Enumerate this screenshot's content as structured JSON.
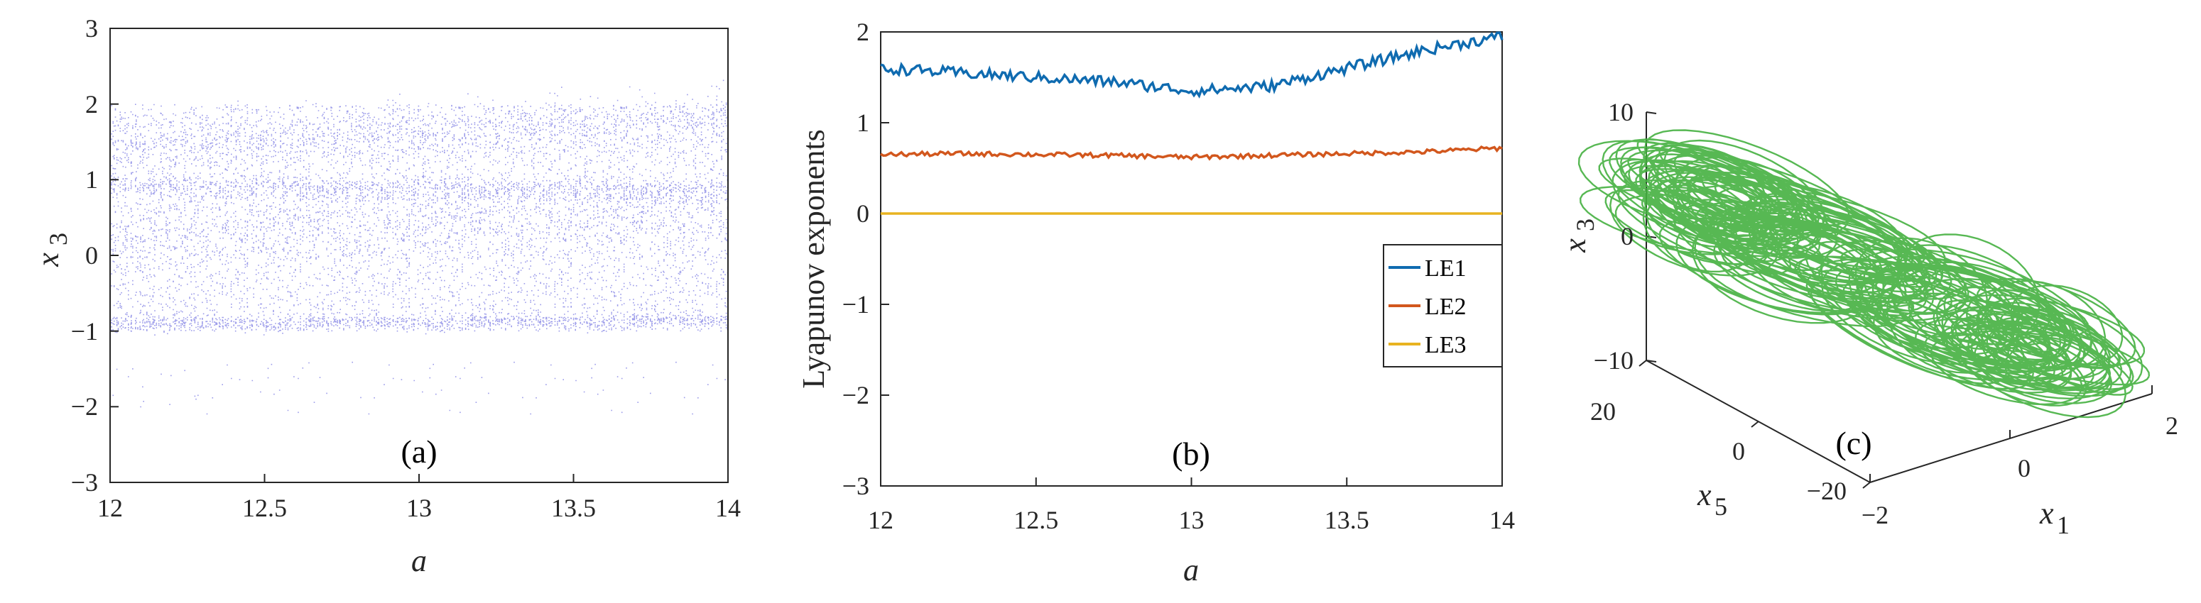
{
  "chart_data": [
    {
      "type": "scatter",
      "panel_label": "(a)",
      "title": "",
      "xlabel": "a",
      "ylabel": "x",
      "ylabel_sub": "3",
      "xlim": [
        12,
        14
      ],
      "ylim": [
        -3,
        3
      ],
      "xticks": [
        "12",
        "12.5",
        "13",
        "13.5",
        "14"
      ],
      "yticks": [
        "3",
        "2",
        "1",
        "0",
        "−1",
        "−2",
        "−3"
      ],
      "marker_color": "#4a4ad8",
      "bands": [
        {
          "center_start": 1.45,
          "center_end": 1.8,
          "spread": 0.18
        },
        {
          "center_start": 0.92,
          "center_end": 0.85,
          "spread": 0.08
        },
        {
          "center_start": 0.28,
          "center_end": 0.6,
          "spread": 0.25
        },
        {
          "center_start": -0.9,
          "center_end": -0.85,
          "spread": 0.05
        }
      ],
      "scatter_range": [
        -1.0,
        2.0
      ]
    },
    {
      "type": "line",
      "panel_label": "(b)",
      "xlabel": "a",
      "ylabel": "Lyapunov exponents",
      "xlim": [
        12,
        14
      ],
      "ylim": [
        -3,
        2
      ],
      "xticks": [
        "12",
        "12.5",
        "13",
        "13.5",
        "14"
      ],
      "yticks": [
        "2",
        "1",
        "0",
        "−1",
        "−2",
        "−3"
      ],
      "x": [
        12.0,
        12.25,
        12.5,
        12.75,
        13.0,
        13.25,
        13.5,
        13.75,
        14.0
      ],
      "series": [
        {
          "name": "LE1",
          "color": "#0f6bb0",
          "values": [
            1.6,
            1.55,
            1.5,
            1.45,
            1.35,
            1.4,
            1.6,
            1.8,
            1.95
          ],
          "noise": 0.06
        },
        {
          "name": "LE2",
          "color": "#d2571d",
          "values": [
            0.65,
            0.66,
            0.65,
            0.64,
            0.62,
            0.64,
            0.66,
            0.68,
            0.72
          ],
          "noise": 0.025
        },
        {
          "name": "LE3",
          "color": "#e8b320",
          "values": [
            0,
            0,
            0,
            0,
            0,
            0,
            0,
            0,
            0
          ],
          "noise": 0
        }
      ],
      "legend": [
        "LE1",
        "LE2",
        "LE3"
      ],
      "legend_position": "center-right"
    },
    {
      "type": "line",
      "panel_label": "(c)",
      "subtype": "3d-attractor",
      "color": "#45b040",
      "xlabel": "x",
      "xlabel_sub": "1",
      "ylabel": "x",
      "ylabel_sub": "5",
      "zlabel": "x",
      "zlabel_sub": "3",
      "xlim": [
        -2,
        2
      ],
      "ylim": [
        -20,
        20
      ],
      "zlim": [
        -10,
        10
      ],
      "xticks": [
        "−2",
        "0",
        "2"
      ],
      "yticks": [
        "20",
        "0",
        "−20"
      ],
      "zticks": [
        "10",
        "0",
        "−10"
      ]
    }
  ]
}
